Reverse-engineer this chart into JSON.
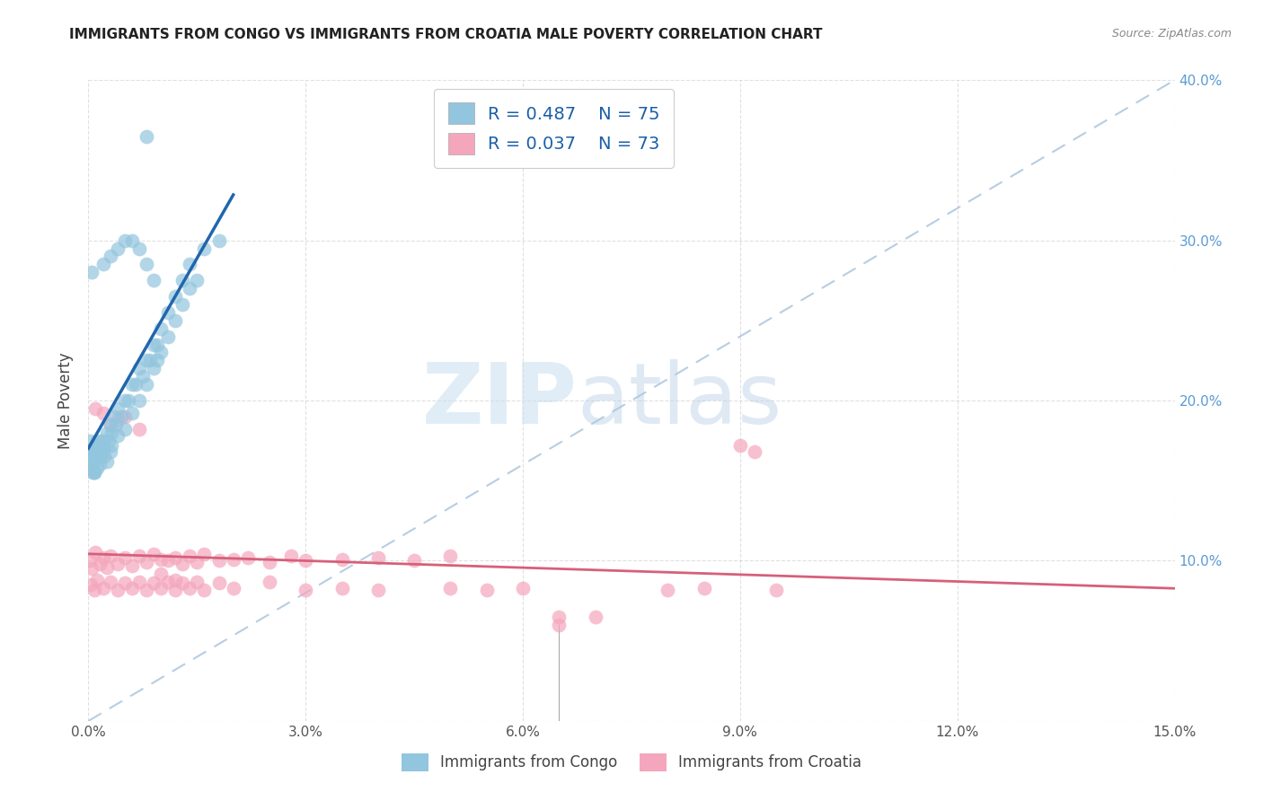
{
  "title": "IMMIGRANTS FROM CONGO VS IMMIGRANTS FROM CROATIA MALE POVERTY CORRELATION CHART",
  "source": "Source: ZipAtlas.com",
  "ylabel": "Male Poverty",
  "xlim": [
    0,
    0.15
  ],
  "ylim": [
    0,
    0.4
  ],
  "xtick_vals": [
    0.0,
    0.03,
    0.06,
    0.09,
    0.12,
    0.15
  ],
  "ytick_vals": [
    0.0,
    0.1,
    0.2,
    0.3,
    0.4
  ],
  "xticklabels": [
    "0.0%",
    "3.0%",
    "6.0%",
    "9.0%",
    "12.0%",
    "15.0%"
  ],
  "right_yticklabels": [
    "",
    "10.0%",
    "20.0%",
    "30.0%",
    "40.0%"
  ],
  "congo_color": "#92c5de",
  "croatia_color": "#f4a6bc",
  "congo_line_color": "#2166ac",
  "croatia_line_color": "#d6607a",
  "congo_R": 0.487,
  "congo_N": 75,
  "croatia_R": 0.037,
  "croatia_N": 73,
  "background_color": "#ffffff",
  "grid_color": "#cccccc",
  "watermark_zip": "ZIP",
  "watermark_atlas": "atlas",
  "title_fontsize": 11,
  "right_tick_color": "#5b9bd5",
  "legend_box_top_label": "R = 0.487    N = 75",
  "legend_box_bottom_label": "R = 0.037    N = 73",
  "bottom_legend_congo": "Immigrants from Congo",
  "bottom_legend_croatia": "Immigrants from Croatia",
  "congo_x": [
    0.0002,
    0.0005,
    0.0003,
    0.001,
    0.0008,
    0.0015,
    0.0004,
    0.0006,
    0.001,
    0.0012,
    0.0008,
    0.0015,
    0.002,
    0.0018,
    0.0025,
    0.0022,
    0.003,
    0.0028,
    0.0035,
    0.0032,
    0.004,
    0.0038,
    0.005,
    0.0045,
    0.006,
    0.0055,
    0.007,
    0.0065,
    0.008,
    0.0075,
    0.009,
    0.0085,
    0.01,
    0.0095,
    0.011,
    0.012,
    0.013,
    0.014,
    0.016,
    0.018,
    0.0002,
    0.0004,
    0.0006,
    0.0008,
    0.001,
    0.0012,
    0.0015,
    0.0018,
    0.002,
    0.0025,
    0.003,
    0.0032,
    0.004,
    0.005,
    0.006,
    0.007,
    0.008,
    0.009,
    0.0095,
    0.01,
    0.011,
    0.012,
    0.013,
    0.014,
    0.015,
    0.0005,
    0.002,
    0.003,
    0.004,
    0.005,
    0.006,
    0.007,
    0.008,
    0.009,
    0.008
  ],
  "congo_y": [
    0.175,
    0.16,
    0.17,
    0.165,
    0.155,
    0.16,
    0.17,
    0.165,
    0.17,
    0.175,
    0.155,
    0.165,
    0.17,
    0.175,
    0.18,
    0.165,
    0.185,
    0.175,
    0.19,
    0.18,
    0.195,
    0.185,
    0.2,
    0.19,
    0.21,
    0.2,
    0.22,
    0.21,
    0.225,
    0.215,
    0.235,
    0.225,
    0.245,
    0.235,
    0.255,
    0.265,
    0.275,
    0.285,
    0.295,
    0.3,
    0.158,
    0.162,
    0.155,
    0.168,
    0.172,
    0.158,
    0.165,
    0.17,
    0.175,
    0.162,
    0.168,
    0.172,
    0.178,
    0.182,
    0.192,
    0.2,
    0.21,
    0.22,
    0.225,
    0.23,
    0.24,
    0.25,
    0.26,
    0.27,
    0.275,
    0.28,
    0.285,
    0.29,
    0.295,
    0.3,
    0.3,
    0.295,
    0.285,
    0.275,
    0.365
  ],
  "croatia_x": [
    0.0002,
    0.0005,
    0.001,
    0.0015,
    0.002,
    0.0025,
    0.003,
    0.004,
    0.005,
    0.006,
    0.007,
    0.008,
    0.009,
    0.01,
    0.011,
    0.012,
    0.013,
    0.014,
    0.015,
    0.016,
    0.018,
    0.02,
    0.022,
    0.025,
    0.028,
    0.03,
    0.035,
    0.04,
    0.045,
    0.05,
    0.0003,
    0.0008,
    0.0012,
    0.002,
    0.003,
    0.004,
    0.005,
    0.006,
    0.007,
    0.008,
    0.009,
    0.01,
    0.011,
    0.012,
    0.013,
    0.014,
    0.015,
    0.016,
    0.018,
    0.02,
    0.025,
    0.03,
    0.035,
    0.04,
    0.05,
    0.055,
    0.06,
    0.065,
    0.07,
    0.08,
    0.085,
    0.09,
    0.092,
    0.095,
    0.001,
    0.002,
    0.003,
    0.004,
    0.005,
    0.007,
    0.065,
    0.01,
    0.012
  ],
  "croatia_y": [
    0.1,
    0.095,
    0.105,
    0.098,
    0.102,
    0.096,
    0.103,
    0.098,
    0.102,
    0.097,
    0.103,
    0.099,
    0.104,
    0.101,
    0.1,
    0.102,
    0.098,
    0.103,
    0.099,
    0.104,
    0.1,
    0.101,
    0.102,
    0.099,
    0.103,
    0.1,
    0.101,
    0.102,
    0.1,
    0.103,
    0.085,
    0.082,
    0.088,
    0.083,
    0.087,
    0.082,
    0.086,
    0.083,
    0.087,
    0.082,
    0.086,
    0.083,
    0.087,
    0.082,
    0.086,
    0.083,
    0.087,
    0.082,
    0.086,
    0.083,
    0.087,
    0.082,
    0.083,
    0.082,
    0.083,
    0.082,
    0.083,
    0.06,
    0.065,
    0.082,
    0.083,
    0.172,
    0.168,
    0.082,
    0.195,
    0.192,
    0.185,
    0.188,
    0.19,
    0.182,
    0.065,
    0.092,
    0.088
  ]
}
